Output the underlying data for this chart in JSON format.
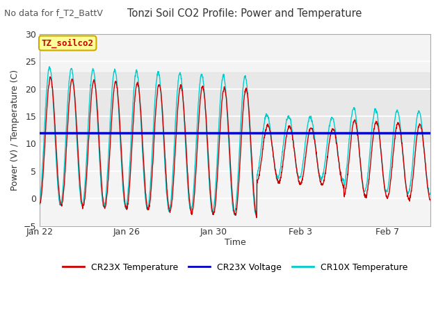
{
  "title": "Tonzi Soil CO2 Profile: Power and Temperature",
  "subtitle": "No data for f_T2_BattV",
  "ylabel": "Power (V) / Temperature (C)",
  "xlabel": "Time",
  "ylim": [
    -5,
    30
  ],
  "yticks": [
    -5,
    0,
    5,
    10,
    15,
    20,
    25,
    30
  ],
  "fig_bg_color": "#ffffff",
  "plot_bg_color": "#f4f4f4",
  "shade_band_low": 10,
  "shade_band_high": 23,
  "shade_band_color": "#e0e0e0",
  "cr23x_voltage_value": 12.0,
  "cr23x_temp_color": "#cc0000",
  "cr23x_voltage_color": "#0000cc",
  "cr10x_temp_color": "#00cccc",
  "legend_labels": [
    "CR23X Temperature",
    "CR23X Voltage",
    "CR10X Temperature"
  ],
  "annotation_box_text": "TZ_soilco2",
  "annotation_box_color": "#ffff99",
  "annotation_box_edge": "#ccaa00",
  "annotation_text_color": "#cc0000",
  "grid_color": "#ffffff",
  "xtick_labels": [
    "Jan 22",
    "Jan 26",
    "Jan 30",
    "Feb 3",
    "Feb 7"
  ],
  "xtick_positions": [
    0,
    4,
    8,
    12,
    16
  ],
  "n_days": 18
}
